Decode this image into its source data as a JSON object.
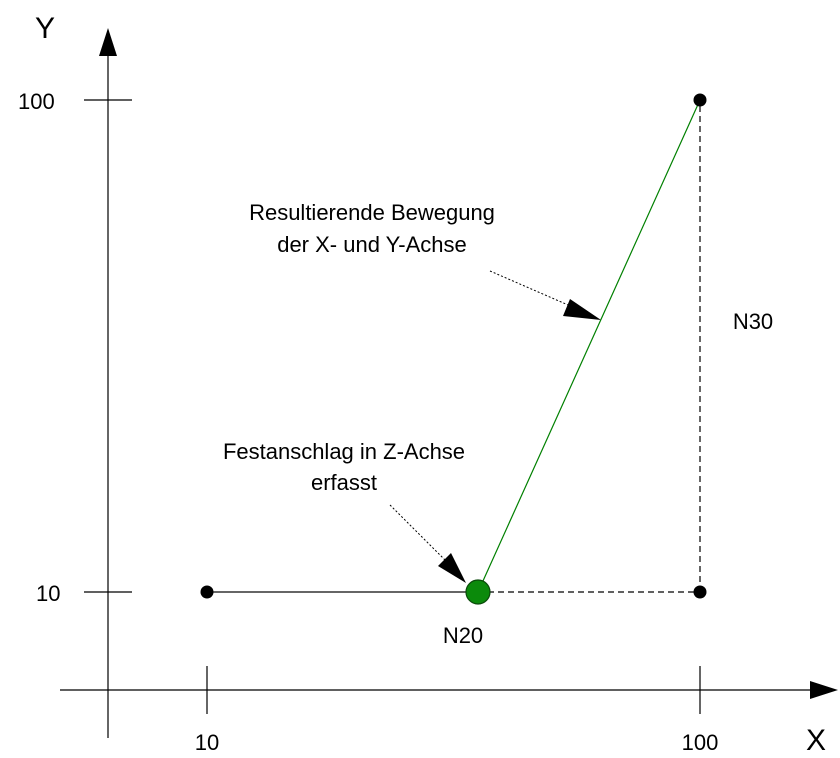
{
  "axes": {
    "x_label": "X",
    "y_label": "Y",
    "x_ticks": [
      "10",
      "100"
    ],
    "y_ticks": [
      "10",
      "100"
    ]
  },
  "points": {
    "start": {
      "x": 10,
      "y": 10
    },
    "n20": {
      "x": 60,
      "y": 10
    },
    "corner": {
      "x": 100,
      "y": 10
    },
    "end": {
      "x": 100,
      "y": 100
    }
  },
  "labels": {
    "n20": "N20",
    "n30": "N30",
    "resultant_line1": "Resultierende Bewegung",
    "resultant_line2": "der X- und Y-Achse",
    "stop_line1": "Festanschlag in Z-Achse",
    "stop_line2": "erfasst"
  },
  "colors": {
    "path": "#0a0a0a",
    "resultant": "#008000",
    "n20_point": "#0b8a0b",
    "annotation_arrow": "#000000"
  }
}
